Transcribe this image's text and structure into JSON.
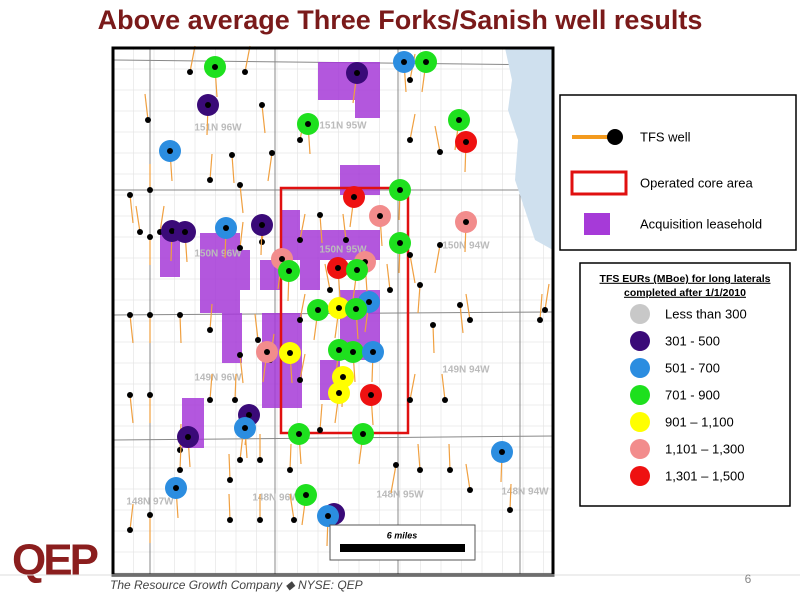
{
  "title": "Above average Three Forks/Sanish well results",
  "map": {
    "township_labels": [
      "151N 96W",
      "151N 95W",
      "150N 94W",
      "150N 96W",
      "150N 95W",
      "149N 96W",
      "149N 94W",
      "148N 97W",
      "148N 96W",
      "148N 95W",
      "148N 94W"
    ],
    "scale_label": "6 miles"
  },
  "legend": {
    "items": [
      "TFS well",
      "Operated core area",
      "Acquisition leasehold"
    ]
  },
  "eur_legend": {
    "title_lines": [
      "TFS EURs (MBoe) for long laterals",
      "completed after 1/1/2010"
    ],
    "classes": [
      {
        "label": "Less than 300",
        "color": "#c8c8c8"
      },
      {
        "label": "301 - 500",
        "color": "#3a0a78"
      },
      {
        "label": "501 - 700",
        "color": "#2b8de0"
      },
      {
        "label": "701 - 900",
        "color": "#1ee01e"
      },
      {
        "label": "901 – 1,100",
        "color": "#ffff00"
      },
      {
        "label": "1,101 – 1,300",
        "color": "#f28c8c"
      },
      {
        "label": "1,301 – 1,500",
        "color": "#ee1111"
      }
    ]
  },
  "footer": {
    "logo": "QEP",
    "tagline": "The Resource Growth Company ◆ NYSE: QEP"
  },
  "page_number": "6"
}
